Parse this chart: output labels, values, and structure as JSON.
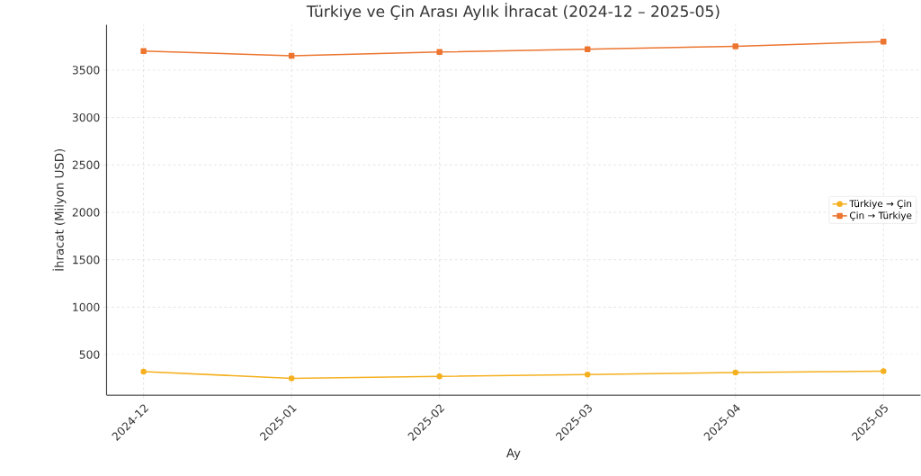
{
  "chart_data": {
    "type": "line",
    "title": "Türkiye ve Çin Arası Aylık İhracat (2024-12 – 2025-05)",
    "xlabel": "Ay",
    "ylabel": "İhracat (Milyon USD)",
    "categories": [
      "2024-12",
      "2025-01",
      "2025-02",
      "2025-03",
      "2025-04",
      "2025-05"
    ],
    "series": [
      {
        "name": "Türkiye → Çin",
        "color": "#f5b020",
        "marker": "circle",
        "values": [
          320,
          250,
          270,
          290,
          310,
          325
        ]
      },
      {
        "name": "Çin → Türkiye",
        "color": "#ec7530",
        "marker": "square",
        "values": [
          3700,
          3650,
          3690,
          3720,
          3750,
          3800
        ]
      }
    ],
    "ylim": [
      73,
      3977
    ],
    "yticks": [
      500,
      1000,
      1500,
      2000,
      2500,
      3000,
      3500
    ],
    "grid": true,
    "legend": "right",
    "line_style": "solid"
  }
}
